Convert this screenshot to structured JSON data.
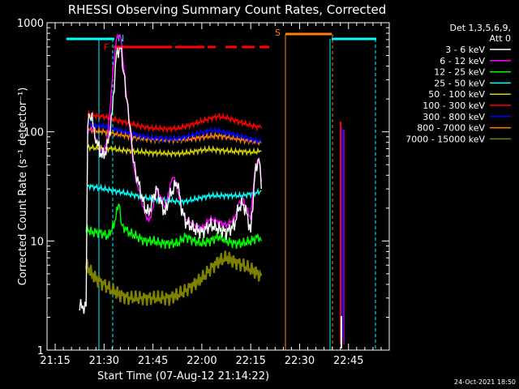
{
  "chart_data": {
    "type": "line",
    "title": "RHESSI Observing Summary Count Rates, Corrected",
    "xlabel": "Start Time (07-Aug-12 21:14:22)",
    "ylabel": "Corrected Count Rate (s⁻¹ detector⁻¹)",
    "yscale": "log",
    "ylim": [
      1,
      1000
    ],
    "xlim_minutes": [
      -4,
      38
    ],
    "x_tick_labels": [
      "21:15",
      "21:30",
      "21:45",
      "22:00",
      "22:15",
      "22:30",
      "22:45"
    ],
    "x_tick_minutes": [
      -3,
      3,
      9,
      15,
      21,
      27,
      33
    ],
    "y_tick_labels": [
      "1",
      "10",
      "100",
      "1000"
    ],
    "y_tick_values": [
      1,
      10,
      100,
      1000
    ],
    "legend_header": [
      "Det 1,3,5,6,9,",
      "Att 0"
    ],
    "legend": [
      {
        "label": "3 - 6 keV",
        "color": "#ffffff"
      },
      {
        "label": "6 - 12 keV",
        "color": "#ff00ff"
      },
      {
        "label": "12 - 25 keV",
        "color": "#00ff00"
      },
      {
        "label": "25 - 50 keV",
        "color": "#00ffff"
      },
      {
        "label": "50 - 100 keV",
        "color": "#d4d400"
      },
      {
        "label": "100 - 300 keV",
        "color": "#ff0000"
      },
      {
        "label": "300 - 800 keV",
        "color": "#0000ff"
      },
      {
        "label": "800 - 7000 keV",
        "color": "#ff8000"
      },
      {
        "label": "7000 - 15000 keV",
        "color": "#808000"
      }
    ],
    "annotations": [
      {
        "label": "N",
        "color": "#00ffff"
      },
      {
        "label": "F",
        "color": "#ff0000"
      },
      {
        "label": "S",
        "color": "#ff8000"
      }
    ],
    "series": [
      {
        "name": "3 - 6 keV",
        "color": "#ffffff",
        "x": [
          0.0,
          0.8,
          1.0,
          1.4,
          2.0,
          2.5,
          3.0,
          3.5,
          4.0,
          4.5,
          5.0,
          5.4,
          5.8,
          6.2,
          6.6,
          7.0,
          7.5,
          8.0,
          8.5,
          9.0,
          9.5,
          10.0,
          10.5,
          11.0,
          11.5,
          12.0,
          12.5,
          13.0,
          13.5,
          14.0,
          15.0,
          16.0,
          17.0,
          18.0,
          19.0,
          19.5,
          20.0,
          20.5,
          21.0,
          21.5,
          22.0,
          22.3
        ],
        "y": [
          2.5,
          2.5,
          130,
          140,
          90,
          65,
          60,
          80,
          150,
          500,
          600,
          350,
          200,
          120,
          60,
          40,
          28,
          20,
          18,
          25,
          30,
          22,
          18,
          25,
          30,
          35,
          20,
          15,
          14,
          13,
          12,
          14,
          13,
          12,
          14,
          20,
          22,
          18,
          12,
          40,
          60,
          30
        ]
      },
      {
        "name": "6 - 12 keV",
        "color": "#ff00ff",
        "x": [
          1.0,
          1.4,
          2.0,
          2.5,
          3.0,
          3.5,
          4.0,
          4.5,
          5.0,
          5.4,
          5.8,
          6.2,
          6.6,
          7.0,
          7.5,
          8.0,
          8.5,
          9.0,
          9.5,
          10.0,
          10.5,
          11.0,
          11.5,
          12.0,
          12.5,
          13.0,
          13.5,
          14.0,
          15.0,
          16.0,
          17.0,
          18.0,
          19.0,
          19.5,
          20.0,
          20.5,
          21.0,
          21.5,
          22.0,
          22.3
        ],
        "y": [
          100,
          110,
          90,
          70,
          65,
          100,
          300,
          700,
          800,
          400,
          200,
          100,
          50,
          35,
          25,
          18,
          15,
          20,
          30,
          25,
          20,
          30,
          40,
          30,
          20,
          16,
          15,
          14,
          13,
          16,
          15,
          14,
          16,
          22,
          25,
          20,
          16,
          45,
          60,
          35
        ]
      },
      {
        "name": "12 - 25 keV",
        "color": "#00ff00",
        "x": [
          0.8,
          1.5,
          2.5,
          3.5,
          4.2,
          4.8,
          5.2,
          6.0,
          7.0,
          8.0,
          9.0,
          10.0,
          11.0,
          12.0,
          13.0,
          14.0,
          15.0,
          16.0,
          17.0,
          18.0,
          19.0,
          20.0,
          21.0,
          22.0,
          22.3
        ],
        "y": [
          13,
          12,
          12,
          11,
          14,
          22,
          14,
          12,
          11,
          10,
          10,
          9.5,
          9.5,
          9.5,
          11,
          10,
          9.5,
          10,
          11,
          10,
          9.5,
          9.5,
          10,
          11,
          10
        ]
      },
      {
        "name": "25 - 50 keV",
        "color": "#00ffff",
        "x": [
          1.0,
          2.0,
          3.0,
          4.0,
          5.0,
          6.0,
          7.0,
          8.0,
          9.0,
          10.0,
          11.0,
          12.0,
          13.0,
          14.0,
          15.0,
          16.0,
          17.0,
          18.0,
          19.0,
          20.0,
          21.0,
          22.0,
          22.3
        ],
        "y": [
          32,
          31,
          30,
          29,
          28,
          27,
          26,
          25,
          24,
          24,
          23.5,
          23,
          23,
          24,
          25,
          26,
          26,
          26,
          26,
          26,
          27,
          28,
          29
        ]
      },
      {
        "name": "50 - 100 keV",
        "color": "#d4d400",
        "x": [
          1.0,
          2.0,
          3.0,
          4.0,
          5.0,
          6.0,
          7.0,
          8.0,
          9.0,
          10.0,
          11.0,
          12.0,
          13.0,
          14.0,
          15.0,
          16.0,
          17.0,
          18.0,
          19.0,
          20.0,
          21.0,
          22.0,
          22.3
        ],
        "y": [
          72,
          71,
          70,
          70,
          68,
          67,
          66,
          65,
          64,
          64,
          63,
          63,
          64,
          66,
          68,
          69,
          68,
          67,
          66,
          66,
          65,
          66,
          66
        ]
      },
      {
        "name": "100 - 300 keV",
        "color": "#ff0000",
        "x": [
          1.0,
          2.0,
          3.0,
          4.0,
          5.0,
          6.0,
          7.0,
          8.0,
          9.0,
          10.0,
          11.0,
          12.0,
          13.0,
          14.0,
          15.0,
          16.0,
          17.0,
          18.0,
          19.0,
          20.0,
          21.0,
          22.0,
          22.3
        ],
        "y": [
          145,
          140,
          138,
          132,
          125,
          120,
          115,
          110,
          108,
          107,
          106,
          108,
          112,
          118,
          125,
          132,
          138,
          135,
          128,
          120,
          115,
          110,
          108
        ]
      },
      {
        "name": "300 - 800 keV",
        "color": "#0000ff",
        "x": [
          1.0,
          2.0,
          3.0,
          4.0,
          5.0,
          6.0,
          7.0,
          8.0,
          9.0,
          10.0,
          11.0,
          12.0,
          13.0,
          14.0,
          15.0,
          16.0,
          17.0,
          18.0,
          19.0,
          20.0,
          21.0,
          22.0,
          22.3
        ],
        "y": [
          118,
          115,
          112,
          108,
          102,
          98,
          94,
          90,
          88,
          87,
          86,
          87,
          90,
          94,
          98,
          103,
          102,
          98,
          94,
          90,
          86,
          82,
          80
        ]
      },
      {
        "name": "800 - 7000 keV",
        "color": "#ff8000",
        "x": [
          1.0,
          2.0,
          3.0,
          4.0,
          5.0,
          6.0,
          7.0,
          8.0,
          9.0,
          10.0,
          11.0,
          12.0,
          13.0,
          14.0,
          15.0,
          16.0,
          17.0,
          18.0,
          19.0,
          20.0,
          21.0,
          22.0,
          22.3
        ],
        "y": [
          105,
          102,
          100,
          97,
          94,
          91,
          88,
          86,
          85,
          84,
          84,
          84,
          85,
          87,
          89,
          91,
          92,
          90,
          87,
          84,
          82,
          80,
          79
        ]
      },
      {
        "name": "7000 - 15000 keV",
        "color": "#808000",
        "x": [
          0.8,
          1.5,
          2.0,
          3.0,
          4.0,
          5.0,
          6.0,
          7.0,
          8.0,
          9.0,
          10.0,
          11.0,
          12.0,
          13.0,
          14.0,
          15.0,
          16.0,
          17.0,
          18.0,
          19.0,
          20.0,
          21.0,
          22.0,
          22.3
        ],
        "y": [
          6,
          5,
          4.5,
          4,
          3.5,
          3.2,
          3.0,
          3.0,
          3.0,
          3.0,
          3.0,
          3.0,
          3.2,
          3.5,
          4.0,
          4.5,
          5.5,
          6.5,
          7.0,
          6.5,
          6.0,
          5.5,
          5.0,
          4.8
        ]
      }
    ]
  },
  "footer": {
    "date": "24-Oct-2021 18:50"
  }
}
